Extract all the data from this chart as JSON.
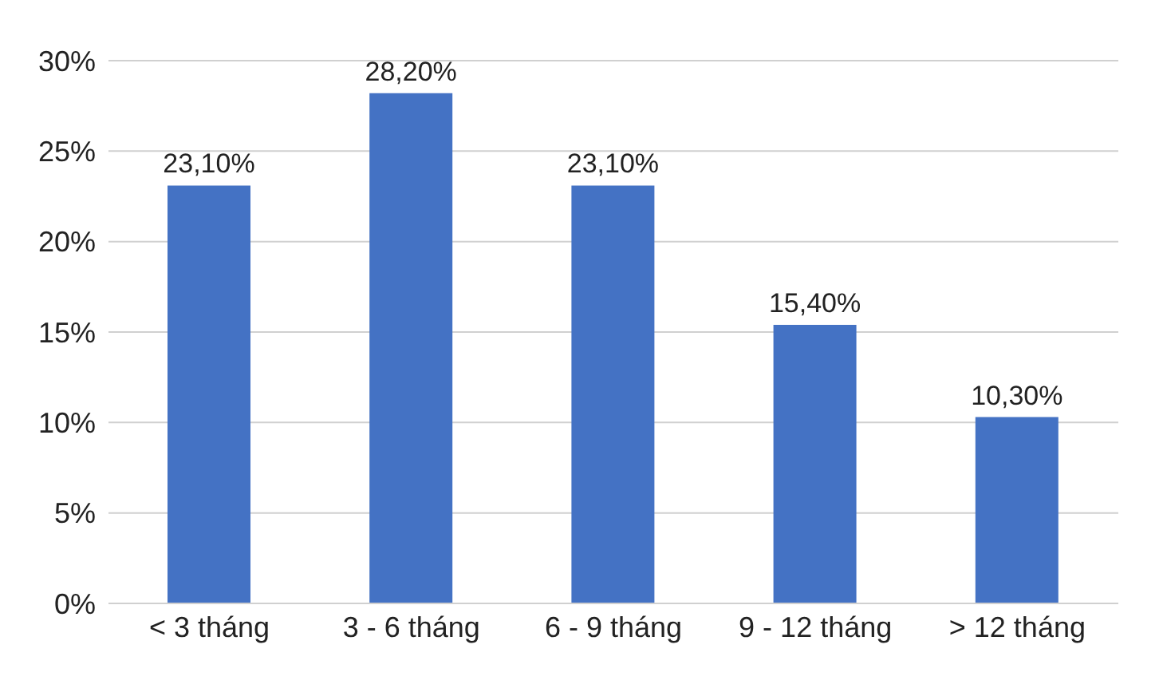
{
  "chart_data": {
    "type": "bar",
    "categories": [
      "< 3 tháng",
      "3 - 6 tháng",
      "6 - 9 tháng",
      "9 - 12 tháng",
      "> 12 tháng"
    ],
    "values": [
      23.1,
      28.2,
      23.1,
      15.4,
      10.3
    ],
    "value_labels": [
      "23,10%",
      "28,20%",
      "23,10%",
      "15,40%",
      "10,30%"
    ],
    "color": "#4472c4",
    "ylim": [
      0,
      30
    ],
    "yticks": [
      {
        "value": 0,
        "label": "0%"
      },
      {
        "value": 5,
        "label": "5%"
      },
      {
        "value": 10,
        "label": "10%"
      },
      {
        "value": 15,
        "label": "15%"
      },
      {
        "value": 20,
        "label": "20%"
      },
      {
        "value": 25,
        "label": "25%"
      },
      {
        "value": 30,
        "label": "30%"
      }
    ],
    "grid": "y"
  }
}
